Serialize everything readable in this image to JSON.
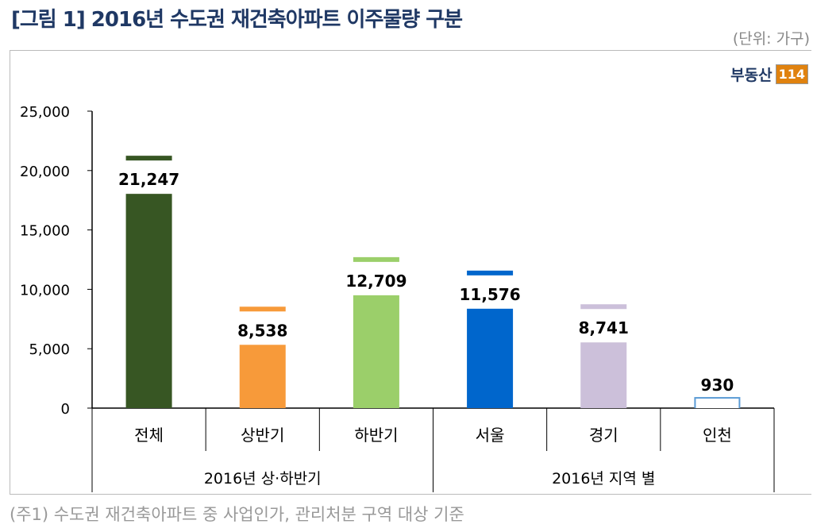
{
  "title": "[그림 1] 2016년 수도권 재건축아파트 이주물량 구분",
  "unit": "(단위: 가구)",
  "logo": {
    "text": "부동산",
    "box": "114"
  },
  "note": "(주1) 수도권 재건축아파트 중 사업인가, 관리처분 구역 대상 기준",
  "chart_data": {
    "type": "bar",
    "categories": [
      "전체",
      "상반기",
      "하반기",
      "서울",
      "경기",
      "인천"
    ],
    "values": [
      21247,
      8538,
      12709,
      11576,
      8741,
      930
    ],
    "value_labels": [
      "21,247",
      "8,538",
      "12,709",
      "11,576",
      "8,741",
      "930"
    ],
    "colors": [
      "#375623",
      "#f79a3a",
      "#9bcf6a",
      "#0066cc",
      "#ccc0da",
      "#5b9bd5"
    ],
    "groups": [
      {
        "label": "2016년 상·하반기",
        "span": 3
      },
      {
        "label": "2016년 지역 별",
        "span": 3
      }
    ],
    "ylim": [
      0,
      25000
    ],
    "yticks": [
      0,
      5000,
      10000,
      15000,
      20000,
      25000
    ],
    "ytick_labels": [
      "0",
      "5,000",
      "10,000",
      "15,000",
      "20,000",
      "25,000"
    ],
    "grid": false
  }
}
